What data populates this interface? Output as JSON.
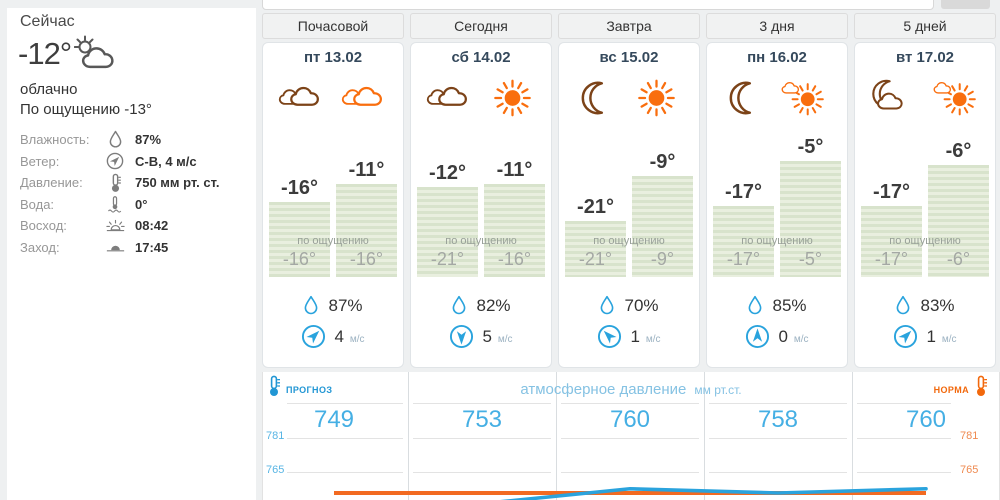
{
  "tabs": [
    "Почасовой",
    "Сегодня",
    "Завтра",
    "3 дня",
    "5 дней"
  ],
  "sidebar": {
    "title": "Сейчас",
    "current_temp": "-12°",
    "current_icon": "sun-behind-cloud-icon",
    "condition": "облачно",
    "feels_like": "По ощущению -13°",
    "details": [
      {
        "label": "Влажность:",
        "icon": "humidity-droplet-icon",
        "value": "87%"
      },
      {
        "label": "Ветер:",
        "icon": "wind-direction-icon",
        "value": "С-В, 4 м/с"
      },
      {
        "label": "Давление:",
        "icon": "thermometer-icon",
        "value": "750 мм рт. ст."
      },
      {
        "label": "Вода:",
        "icon": "water-temperature-icon",
        "value": "0°"
      },
      {
        "label": "Восход:",
        "icon": "sunrise-icon",
        "value": "08:42"
      },
      {
        "label": "Заход:",
        "icon": "sunset-icon",
        "value": "17:45"
      }
    ]
  },
  "labels": {
    "feels": "по ощущению"
  },
  "days": [
    {
      "date": "пт 13.02",
      "night_icon": "clouds-icon",
      "day_icon": "clouds-icon",
      "temps": [
        -16,
        -11
      ],
      "temp_night": "-16°",
      "temp_day": "-11°",
      "feels_night": "-16°",
      "feels_day": "-16°",
      "humidity": "87%",
      "wind_speed": "4",
      "wind_unit": "м/с",
      "wind_dir_deg": 45,
      "pressure": "749"
    },
    {
      "date": "сб 14.02",
      "night_icon": "clouds-icon",
      "day_icon": "sun-icon",
      "temps": [
        -12,
        -11
      ],
      "temp_night": "-12°",
      "temp_day": "-11°",
      "feels_night": "-21°",
      "feels_day": "-16°",
      "humidity": "82%",
      "wind_speed": "5",
      "wind_unit": "м/с",
      "wind_dir_deg": 180,
      "pressure": "753"
    },
    {
      "date": "вс 15.02",
      "night_icon": "moon-icon",
      "day_icon": "sun-icon",
      "temps": [
        -21,
        -9
      ],
      "temp_night": "-21°",
      "temp_day": "-9°",
      "feels_night": "-21°",
      "feels_day": "-9°",
      "humidity": "70%",
      "wind_speed": "1",
      "wind_unit": "м/с",
      "wind_dir_deg": 315,
      "pressure": "760"
    },
    {
      "date": "пн 16.02",
      "night_icon": "moon-icon",
      "day_icon": "sun-behind-cloud-icon",
      "temps": [
        -17,
        -5
      ],
      "temp_night": "-17°",
      "temp_day": "-5°",
      "feels_night": "-17°",
      "feels_day": "-5°",
      "humidity": "85%",
      "wind_speed": "0",
      "wind_unit": "м/с",
      "wind_dir_deg": 0,
      "pressure": "758"
    },
    {
      "date": "вт 17.02",
      "night_icon": "moon-with-cloud-icon",
      "day_icon": "sun-behind-cloud-icon",
      "temps": [
        -17,
        -6
      ],
      "temp_night": "-17°",
      "temp_day": "-6°",
      "feels_night": "-17°",
      "feels_day": "-6°",
      "humidity": "83%",
      "wind_speed": "1",
      "wind_unit": "м/с",
      "wind_dir_deg": 45,
      "pressure": "760"
    }
  ],
  "pressure_panel": {
    "forecast_label": "ПРОГНОЗ",
    "norm_label": "НОРМА",
    "title": "атмосферное давление",
    "title_unit": "мм рт.ст.",
    "axis_left": [
      "781",
      "765"
    ],
    "axis_right": [
      "781",
      "765"
    ]
  },
  "chart_data": {
    "type": "line",
    "categories": [
      "пт 13.02",
      "сб 14.02",
      "вс 15.02",
      "пн 16.02",
      "вт 17.02"
    ],
    "series": [
      {
        "name": "прогноз",
        "color": "#2aa3dd",
        "values": [
          749,
          753,
          760,
          758,
          760
        ]
      },
      {
        "name": "норма",
        "color": "#f26a21",
        "values": [
          758,
          758,
          758,
          758,
          758
        ]
      }
    ],
    "unit": "мм рт.ст.",
    "axis_ticks": [
      781,
      765
    ],
    "legend_position": "none",
    "temperature_bars": {
      "night": [
        -16,
        -12,
        -21,
        -17,
        -17
      ],
      "day": [
        -11,
        -11,
        -9,
        -5,
        -6
      ],
      "feels_night": [
        -16,
        -21,
        -21,
        -17,
        -17
      ],
      "feels_day": [
        -16,
        -16,
        -9,
        -5,
        -6
      ]
    }
  }
}
